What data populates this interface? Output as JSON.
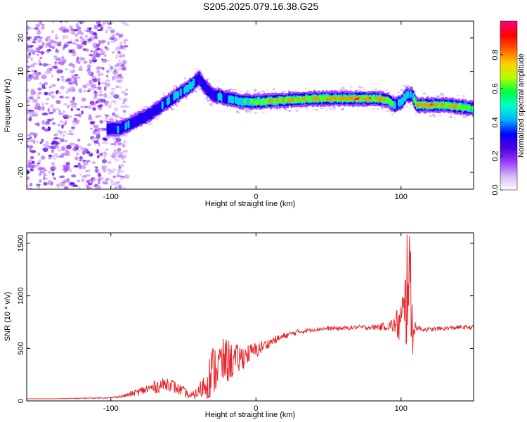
{
  "title": "S205.2025.079.16.38.G25",
  "colors": {
    "snr_line": "#e8262b",
    "colormap": [
      "#ffffff",
      "#d7b8f5",
      "#9b3cff",
      "#4b00e0",
      "#0000ff",
      "#00b4ff",
      "#00ffd0",
      "#00ff3c",
      "#b4ff00",
      "#ffd000",
      "#ff6000",
      "#ff0000",
      "#ff0078"
    ]
  },
  "chart_data": [
    {
      "id": "spectrogram",
      "type": "heatmap",
      "xlabel": "Height of straight line (km)",
      "ylabel": "Frequency (Hz)",
      "xlim": [
        -158,
        150
      ],
      "ylim": [
        -25,
        25
      ],
      "xticks": [
        -100,
        0,
        100
      ],
      "yticks": [
        -20,
        -10,
        0,
        10,
        20
      ],
      "colorbar": {
        "label": "Normalized spectral amplitude",
        "range": [
          0,
          1
        ],
        "ticks": [
          "0.0",
          "0.2",
          "0.4",
          "0.6",
          "0.8"
        ]
      },
      "ridge": {
        "x": [
          -158,
          -100,
          -95,
          -85,
          -75,
          -65,
          -55,
          -45,
          -40,
          -35,
          -30,
          -20,
          -10,
          0,
          20,
          40,
          60,
          80,
          90,
          95,
          100,
          103,
          107,
          110,
          130,
          150
        ],
        "frequency": [
          -7,
          -7,
          -7,
          -5,
          -3,
          0,
          3,
          6,
          8,
          5,
          3,
          2,
          1,
          1,
          1.5,
          2,
          2,
          2,
          1.5,
          0,
          1,
          3,
          3,
          0,
          0,
          -1
        ],
        "amplitude": [
          0.3,
          0.35,
          0.45,
          0.4,
          0.4,
          0.45,
          0.5,
          0.5,
          0.4,
          0.35,
          0.4,
          0.5,
          0.6,
          0.7,
          0.8,
          0.85,
          0.9,
          0.9,
          0.8,
          0.5,
          0.6,
          0.5,
          0.5,
          0.95,
          0.9,
          0.6
        ]
      },
      "noise_region_x": [
        -158,
        -95
      ]
    },
    {
      "id": "snr",
      "type": "line",
      "xlabel": "Height of straight line (km)",
      "ylabel": "SNR (10 * v/v)",
      "xlim": [
        -158,
        150
      ],
      "ylim": [
        0,
        1600
      ],
      "xticks": [
        -100,
        0,
        100
      ],
      "yticks": [
        0,
        500,
        1000,
        1500
      ],
      "series": [
        {
          "x": [
            -158,
            -140,
            -120,
            -100,
            -90,
            -80,
            -70,
            -60,
            -55,
            -50,
            -45,
            -40,
            -35,
            -30,
            -25,
            -20,
            -15,
            -10,
            -5,
            0,
            5,
            10,
            20,
            30,
            40,
            50,
            60,
            70,
            80,
            90,
            95,
            100,
            103,
            105,
            107,
            110,
            115,
            120,
            130,
            140,
            150
          ],
          "y": [
            20,
            20,
            25,
            30,
            50,
            90,
            130,
            170,
            120,
            90,
            40,
            80,
            160,
            280,
            350,
            380,
            380,
            410,
            450,
            480,
            520,
            560,
            620,
            660,
            680,
            690,
            690,
            700,
            700,
            710,
            720,
            740,
            800,
            1500,
            760,
            700,
            680,
            680,
            690,
            700,
            700
          ],
          "envelope": [
            0,
            0,
            5,
            5,
            15,
            40,
            60,
            70,
            60,
            50,
            30,
            60,
            150,
            250,
            230,
            220,
            160,
            130,
            90,
            80,
            60,
            40,
            30,
            25,
            20,
            20,
            20,
            20,
            25,
            40,
            80,
            250,
            500,
            800,
            450,
            30,
            20,
            20,
            20,
            20,
            20
          ]
        }
      ]
    }
  ]
}
